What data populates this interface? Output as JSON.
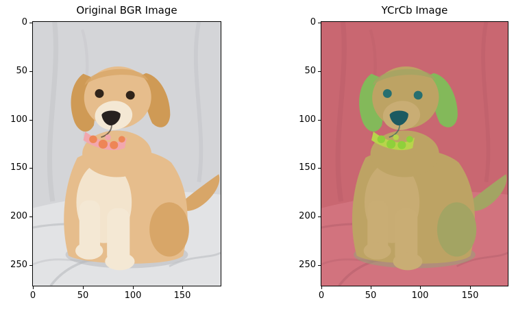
{
  "figure": {
    "background": "#ffffff",
    "text_color": "#000000"
  },
  "chart_data": {
    "type": "image",
    "layout": "1x2 subplots",
    "grid": false,
    "panels": [
      {
        "title": "Original BGR Image",
        "x_ticks": [
          0,
          50,
          100,
          150
        ],
        "y_ticks": [
          0,
          50,
          100,
          150,
          200,
          250
        ],
        "x_range": [
          -0.7,
          189.0
        ],
        "y_range": [
          -1.4,
          272.0
        ],
        "y_axis_inverted": true,
        "description": "Golden retriever puppy with a pink and orange floral collar sitting on a light gray fabric backdrop",
        "palette": {
          "bg": "#d4d5d8",
          "bg_fold": "#c2c4c8",
          "floor": "#e2e3e5",
          "floor_shadow": "#bfc1c5",
          "shadow": "#b4b6ba",
          "fur": "#e6bd8c",
          "fur_mid": "#d8a668",
          "fur_dark": "#cf9a55",
          "fur_light": "#f4e8d4",
          "eye": "#30241a",
          "nose": "#27211f",
          "collar_a": "#ee8656",
          "collar_b": "#f2a7ae"
        }
      },
      {
        "title": "YCrCb Image",
        "x_ticks": [
          0,
          50,
          100,
          150
        ],
        "y_ticks": [
          0,
          50,
          100,
          150,
          200,
          250
        ],
        "x_range": [
          -0.7,
          189.0
        ],
        "y_range": [
          -1.4,
          272.0
        ],
        "y_axis_inverted": true,
        "description": "Same puppy photo converted to YCrCb color space: background appears muted red, fur olive green, ears bright green, eyes and nose dark teal",
        "palette": {
          "bg": "#c96771",
          "bg_fold": "#bb5e6a",
          "floor": "#d2737e",
          "floor_shadow": "#bb6470",
          "shadow": "#8fa878",
          "fur": "#bda364",
          "fur_mid": "#a3a463",
          "fur_dark": "#83b95a",
          "fur_light": "#c9ad74",
          "eye": "#266f70",
          "nose": "#1c5a61",
          "collar_a": "#8fd03b",
          "collar_b": "#b8d44b"
        }
      }
    ]
  }
}
